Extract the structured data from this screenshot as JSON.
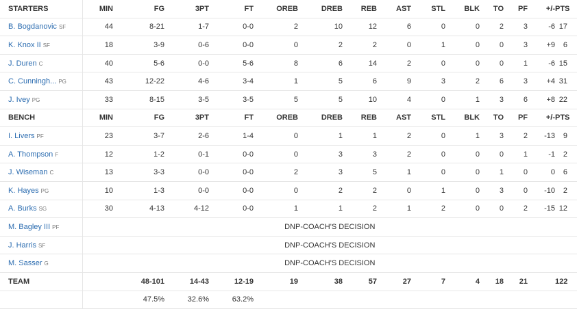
{
  "headers": {
    "starters": "STARTERS",
    "bench": "BENCH",
    "columns": [
      "MIN",
      "FG",
      "3PT",
      "FT",
      "OREB",
      "DREB",
      "REB",
      "AST",
      "STL",
      "BLK",
      "TO",
      "PF",
      "+/-",
      "PTS"
    ]
  },
  "starters": [
    {
      "name": "B. Bogdanovic",
      "pos": "SF",
      "stats": [
        "44",
        "8-21",
        "1-7",
        "0-0",
        "2",
        "10",
        "12",
        "6",
        "0",
        "0",
        "2",
        "3",
        "-6",
        "17"
      ]
    },
    {
      "name": "K. Knox II",
      "pos": "SF",
      "stats": [
        "18",
        "3-9",
        "0-6",
        "0-0",
        "0",
        "2",
        "2",
        "0",
        "1",
        "0",
        "0",
        "3",
        "+9",
        "6"
      ]
    },
    {
      "name": "J. Duren",
      "pos": "C",
      "stats": [
        "40",
        "5-6",
        "0-0",
        "5-6",
        "8",
        "6",
        "14",
        "2",
        "0",
        "0",
        "0",
        "1",
        "-6",
        "15"
      ]
    },
    {
      "name": "C. Cunningh...",
      "pos": "PG",
      "stats": [
        "43",
        "12-22",
        "4-6",
        "3-4",
        "1",
        "5",
        "6",
        "9",
        "3",
        "2",
        "6",
        "3",
        "+4",
        "31"
      ]
    },
    {
      "name": "J. Ivey",
      "pos": "PG",
      "stats": [
        "33",
        "8-15",
        "3-5",
        "3-5",
        "5",
        "5",
        "10",
        "4",
        "0",
        "1",
        "3",
        "6",
        "+8",
        "22"
      ]
    }
  ],
  "bench": [
    {
      "name": "I. Livers",
      "pos": "PF",
      "stats": [
        "23",
        "3-7",
        "2-6",
        "1-4",
        "0",
        "1",
        "1",
        "2",
        "0",
        "1",
        "3",
        "2",
        "-13",
        "9"
      ]
    },
    {
      "name": "A. Thompson",
      "pos": "F",
      "stats": [
        "12",
        "1-2",
        "0-1",
        "0-0",
        "0",
        "3",
        "3",
        "2",
        "0",
        "0",
        "0",
        "1",
        "-1",
        "2"
      ]
    },
    {
      "name": "J. Wiseman",
      "pos": "C",
      "stats": [
        "13",
        "3-3",
        "0-0",
        "0-0",
        "2",
        "3",
        "5",
        "1",
        "0",
        "0",
        "1",
        "0",
        "0",
        "6"
      ]
    },
    {
      "name": "K. Hayes",
      "pos": "PG",
      "stats": [
        "10",
        "1-3",
        "0-0",
        "0-0",
        "0",
        "2",
        "2",
        "0",
        "1",
        "0",
        "3",
        "0",
        "-10",
        "2"
      ]
    },
    {
      "name": "A. Burks",
      "pos": "SG",
      "stats": [
        "30",
        "4-13",
        "4-12",
        "0-0",
        "1",
        "1",
        "2",
        "1",
        "2",
        "0",
        "0",
        "2",
        "-15",
        "12"
      ]
    }
  ],
  "dnp": [
    {
      "name": "M. Bagley III",
      "pos": "PF",
      "text": "DNP-COACH'S DECISION"
    },
    {
      "name": "J. Harris",
      "pos": "SF",
      "text": "DNP-COACH'S DECISION"
    },
    {
      "name": "M. Sasser",
      "pos": "G",
      "text": "DNP-COACH'S DECISION"
    }
  ],
  "team": {
    "label": "TEAM",
    "stats": [
      "",
      "48-101",
      "14-43",
      "12-19",
      "19",
      "38",
      "57",
      "27",
      "7",
      "4",
      "18",
      "21",
      "",
      "122"
    ],
    "pct": [
      "",
      "47.5%",
      "32.6%",
      "63.2%",
      "",
      "",
      "",
      "",
      "",
      "",
      "",
      "",
      "",
      ""
    ]
  }
}
